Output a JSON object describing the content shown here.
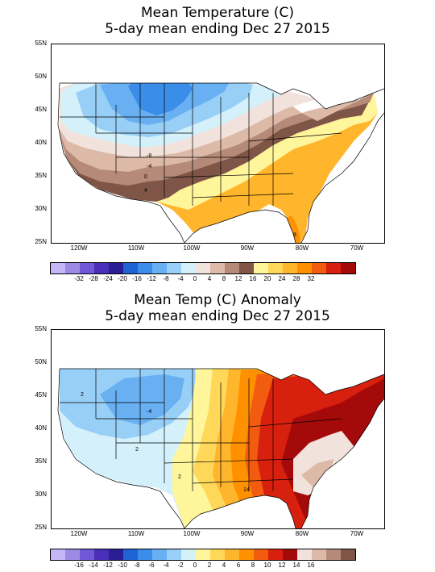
{
  "panels": [
    {
      "title_line1": "Mean Temperature (C)",
      "title_line2": "5-day mean ending Dec 27 2015",
      "lat_labels": [
        "55N",
        "50N",
        "45N",
        "40N",
        "35N",
        "30N",
        "25N"
      ],
      "lon_labels": [
        "120W",
        "110W",
        "100W",
        "90W",
        "80W",
        "70W"
      ],
      "colorbar_colors": [
        "#c4b6f7",
        "#9c8ae6",
        "#6f59d8",
        "#4a2fb8",
        "#2b1d93",
        "#1f63d6",
        "#3a8de8",
        "#68b0f2",
        "#98cff7",
        "#d4f1fb",
        "#f2e2dc",
        "#ddb9a8",
        "#b58a78",
        "#7e5546",
        "#fff59a",
        "#ffd85a",
        "#ffb52c",
        "#ff9100",
        "#f25c10",
        "#d8200e",
        "#a40a0a"
      ],
      "colorbar_labels": [
        "-32",
        "-28",
        "-24",
        "-20",
        "-16",
        "-12",
        "-8",
        "-4",
        "0",
        "4",
        "8",
        "12",
        "16",
        "20",
        "24",
        "28",
        "32"
      ],
      "contour_labels": [
        "-8",
        "-4",
        "0",
        "4",
        "-4",
        "8"
      ]
    },
    {
      "title_line1": "Mean Temp (C) Anomaly",
      "title_line2": "5-day mean ending Dec 27 2015",
      "lat_labels": [
        "55N",
        "50N",
        "45N",
        "40N",
        "35N",
        "30N",
        "25N"
      ],
      "lon_labels": [
        "120W",
        "110W",
        "100W",
        "90W",
        "80W",
        "70W"
      ],
      "colorbar_colors": [
        "#c4b6f7",
        "#9c8ae6",
        "#6f59d8",
        "#4a2fb8",
        "#2b1d93",
        "#1f63d6",
        "#3a8de8",
        "#68b0f2",
        "#98cff7",
        "#d4f1fb",
        "#fff59a",
        "#ffd85a",
        "#ffb52c",
        "#ff9100",
        "#f25c10",
        "#d8200e",
        "#a40a0a",
        "#f2e2dc",
        "#ddb9a8",
        "#b58a78",
        "#7e5546"
      ],
      "colorbar_labels": [
        "-16",
        "-14",
        "-12",
        "-10",
        "-8",
        "-6",
        "-4",
        "-2",
        "0",
        "2",
        "4",
        "6",
        "8",
        "10",
        "12",
        "14",
        "16"
      ],
      "contour_labels": [
        "2",
        "-4",
        "2",
        "2",
        "14"
      ]
    }
  ]
}
